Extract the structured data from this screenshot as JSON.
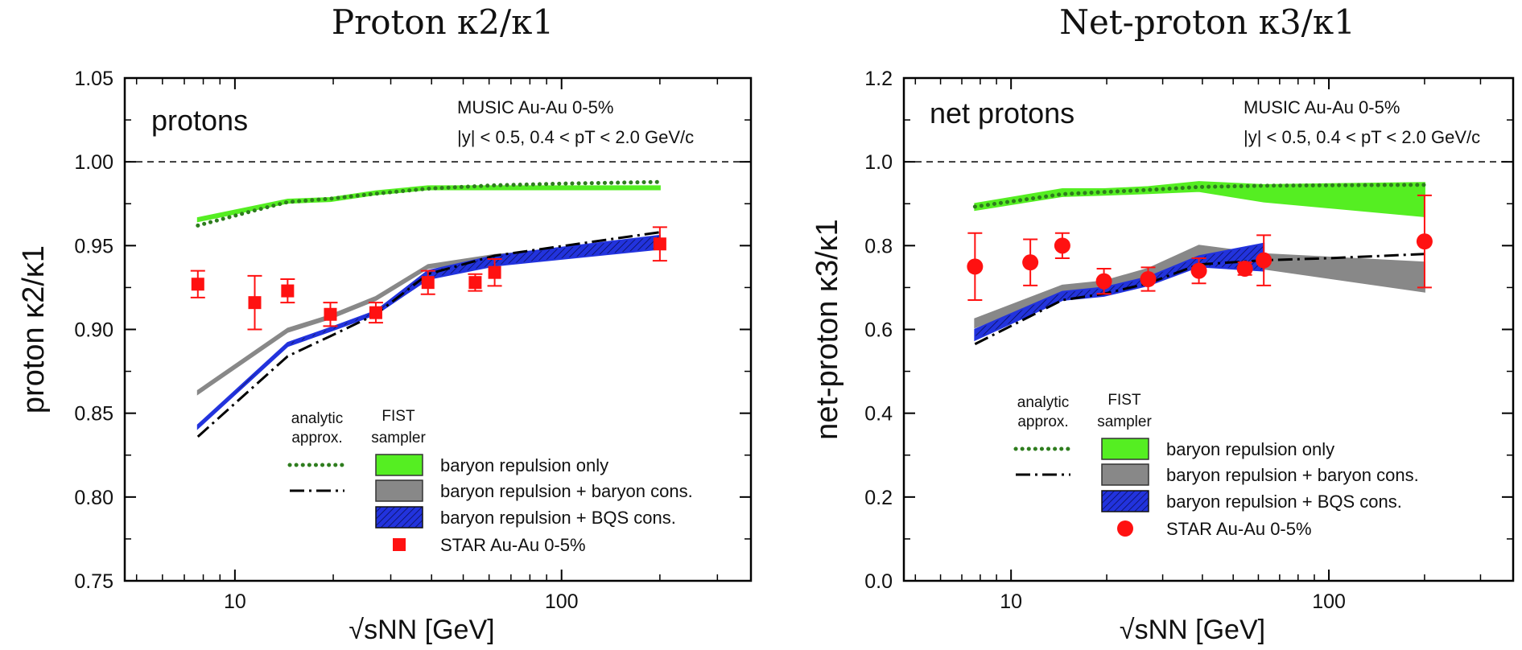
{
  "chart_data": [
    {
      "type": "line",
      "title": "Proton κ2/κ1",
      "xlabel": "√sNN [GeV]",
      "ylabel": "proton κ2/κ1",
      "xscale": "log",
      "xlim": [
        4.6,
        380
      ],
      "ylim": [
        0.75,
        1.05
      ],
      "x_ticks": [
        10,
        100
      ],
      "y_ticks": [
        "0.75",
        "0.80",
        "0.85",
        "0.90",
        "0.95",
        "1.00",
        "1.05"
      ],
      "reference_line": 1.0,
      "corner_label": "protons",
      "info_lines": [
        "MUSIC Au-Au 0-5%",
        "|y| < 0.5, 0.4 < pT < 2.0 GeV/c"
      ],
      "legend_headers": [
        "analytic approx.",
        "FIST sampler"
      ],
      "legend_entries": [
        "baryon repulsion only",
        "baryon repulsion + baryon cons.",
        "baryon repulsion + BQS cons.",
        "STAR Au-Au 0-5%"
      ],
      "series": [
        {
          "name": "baryon repulsion only",
          "kind": "band",
          "color": "#55ee22",
          "x": [
            7.7,
            14.5,
            19.6,
            27,
            39,
            200
          ],
          "y_low": [
            0.9645,
            0.9755,
            0.9765,
            0.9805,
            0.9835,
            0.9835
          ],
          "y_high": [
            0.9665,
            0.9775,
            0.9785,
            0.9825,
            0.9855,
            0.9855
          ]
        },
        {
          "name": "baryon repulsion + baryon cons.",
          "kind": "band",
          "color": "#888888",
          "x": [
            7.7,
            14.5,
            19.6,
            27,
            39,
            62.4,
            200
          ],
          "y_low": [
            0.8615,
            0.8985,
            0.9065,
            0.9175,
            0.9365,
            0.9425,
            0.9515
          ],
          "y_high": [
            0.8635,
            0.9005,
            0.9085,
            0.9195,
            0.9385,
            0.9445,
            0.9535
          ]
        },
        {
          "name": "baryon repulsion + BQS cons.",
          "kind": "band",
          "color": "#2233dd",
          "x": [
            7.7,
            14.5,
            19.6,
            27,
            39,
            62.4,
            200
          ],
          "y_low": [
            0.841,
            0.89,
            0.899,
            0.909,
            0.93,
            0.938,
            0.948
          ],
          "y_high": [
            0.843,
            0.892,
            0.901,
            0.911,
            0.935,
            0.944,
            0.956
          ]
        },
        {
          "name": "",
          "kind": "dotted",
          "legend_ref": "baryon repulsion only",
          "color": "#2e7d1e",
          "x": [
            7.7,
            11.5,
            14.5,
            19.6,
            27,
            39,
            62.4,
            100,
            200
          ],
          "y": [
            0.962,
            0.971,
            0.976,
            0.978,
            0.981,
            0.984,
            0.986,
            0.987,
            0.988
          ]
        },
        {
          "name": "",
          "kind": "dashdot",
          "legend_ref": "baryon repulsion + baryon cons.",
          "color": "#000000",
          "x": [
            7.7,
            14.5,
            19.6,
            27,
            39,
            62.4,
            200
          ],
          "y": [
            0.836,
            0.884,
            0.896,
            0.909,
            0.933,
            0.944,
            0.958
          ]
        },
        {
          "name": "STAR Au-Au 0-5%",
          "kind": "points",
          "marker": "square",
          "color": "#ff1111",
          "x": [
            7.7,
            11.5,
            14.5,
            19.6,
            27,
            39,
            54.4,
            62.4,
            200
          ],
          "y": [
            0.927,
            0.916,
            0.923,
            0.909,
            0.91,
            0.928,
            0.928,
            0.934,
            0.951
          ],
          "err": [
            0.008,
            0.016,
            0.007,
            0.007,
            0.006,
            0.007,
            0.005,
            0.008,
            0.01
          ]
        }
      ]
    },
    {
      "type": "line",
      "title": "Net-proton κ3/κ1",
      "xlabel": "√sNN [GeV]",
      "ylabel": "net-proton κ3/κ1",
      "xscale": "log",
      "xlim": [
        4.6,
        380
      ],
      "ylim": [
        0.0,
        1.2
      ],
      "x_ticks": [
        10,
        100
      ],
      "y_ticks": [
        "0.0",
        "0.2",
        "0.4",
        "0.6",
        "0.8",
        "1.0",
        "1.2"
      ],
      "reference_line": 1.0,
      "corner_label": "net protons",
      "info_lines": [
        "MUSIC Au-Au 0-5%",
        "|y| < 0.5, 0.4 < pT < 2.0 GeV/c"
      ],
      "legend_headers": [
        "analytic approx.",
        "FIST sampler"
      ],
      "legend_entries": [
        "baryon repulsion only",
        "baryon repulsion + baryon cons.",
        "baryon repulsion + BQS cons.",
        "STAR Au-Au 0-5%"
      ],
      "series": [
        {
          "name": "baryon repulsion only",
          "kind": "band",
          "color": "#55ee22",
          "x": [
            7.7,
            14.5,
            19.6,
            27,
            39,
            62.4,
            200
          ],
          "y_low": [
            0.885,
            0.918,
            0.921,
            0.925,
            0.93,
            0.905,
            0.87
          ],
          "y_high": [
            0.9,
            0.935,
            0.935,
            0.94,
            0.952,
            0.945,
            0.95
          ]
        },
        {
          "name": "baryon repulsion + baryon cons.",
          "kind": "band",
          "color": "#888888",
          "x": [
            7.7,
            14.5,
            19.6,
            27,
            39,
            62.4,
            200
          ],
          "y_low": [
            0.605,
            0.685,
            0.695,
            0.715,
            0.765,
            0.745,
            0.69
          ],
          "y_high": [
            0.625,
            0.705,
            0.715,
            0.745,
            0.8,
            0.78,
            0.76
          ]
        },
        {
          "name": "baryon repulsion + BQS cons.",
          "kind": "band",
          "color": "#2233dd",
          "x": [
            7.7,
            14.5,
            19.6,
            27,
            39,
            62.4
          ],
          "y_low": [
            0.575,
            0.67,
            0.68,
            0.705,
            0.75,
            0.74
          ],
          "y_high": [
            0.6,
            0.69,
            0.7,
            0.725,
            0.775,
            0.805
          ]
        },
        {
          "name": "",
          "kind": "dotted",
          "legend_ref": "baryon repulsion only",
          "color": "#2e7d1e",
          "x": [
            7.7,
            11.5,
            14.5,
            19.6,
            27,
            39,
            62.4,
            100,
            200
          ],
          "y": [
            0.893,
            0.912,
            0.923,
            0.928,
            0.933,
            0.94,
            0.943,
            0.944,
            0.945
          ]
        },
        {
          "name": "",
          "kind": "dashdot",
          "legend_ref": "baryon repulsion + baryon cons.",
          "color": "#000000",
          "x": [
            7.7,
            14.5,
            19.6,
            27,
            39,
            62.4,
            100,
            200
          ],
          "y": [
            0.565,
            0.67,
            0.685,
            0.71,
            0.755,
            0.765,
            0.77,
            0.78
          ]
        },
        {
          "name": "STAR Au-Au 0-5%",
          "kind": "points",
          "marker": "circle",
          "color": "#ff1111",
          "x": [
            7.7,
            11.5,
            14.5,
            19.6,
            27,
            39,
            54.4,
            62.4,
            200
          ],
          "y": [
            0.75,
            0.76,
            0.8,
            0.715,
            0.72,
            0.74,
            0.745,
            0.765,
            0.81
          ],
          "err": [
            0.08,
            0.055,
            0.03,
            0.03,
            0.028,
            0.03,
            0.015,
            0.06,
            0.11
          ]
        }
      ]
    }
  ]
}
